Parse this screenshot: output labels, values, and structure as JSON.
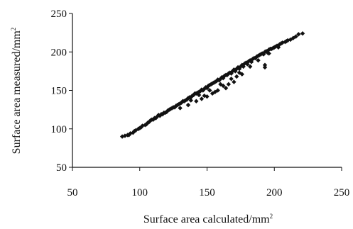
{
  "chart_data": {
    "type": "scatter",
    "title": "",
    "xlabel": "Surface area calculated/mm",
    "xlabel_sup": "2",
    "ylabel": "Surface area measured/mm",
    "ylabel_sup": "2",
    "xlim": [
      50,
      250
    ],
    "ylim": [
      50,
      250
    ],
    "xticks": [
      50,
      100,
      150,
      200,
      250
    ],
    "yticks": [
      50,
      100,
      150,
      200,
      250
    ],
    "grid": false,
    "legend": "none",
    "marker": "diamond",
    "marker_color": "#111111",
    "points": [
      [
        87,
        90
      ],
      [
        89,
        91
      ],
      [
        91,
        92
      ],
      [
        93,
        94
      ],
      [
        95,
        95
      ],
      [
        97,
        98
      ],
      [
        99,
        100
      ],
      [
        101,
        102
      ],
      [
        102,
        104
      ],
      [
        104,
        105
      ],
      [
        106,
        108
      ],
      [
        107,
        109
      ],
      [
        109,
        112
      ],
      [
        110,
        112
      ],
      [
        112,
        114
      ],
      [
        113,
        116
      ],
      [
        115,
        117
      ],
      [
        116,
        119
      ],
      [
        118,
        121
      ],
      [
        119,
        121
      ],
      [
        121,
        124
      ],
      [
        122,
        125
      ],
      [
        124,
        127
      ],
      [
        125,
        128
      ],
      [
        127,
        130
      ],
      [
        128,
        131
      ],
      [
        130,
        133
      ],
      [
        131,
        134
      ],
      [
        133,
        136
      ],
      [
        134,
        137
      ],
      [
        136,
        140
      ],
      [
        137,
        141
      ],
      [
        139,
        143
      ],
      [
        140,
        144
      ],
      [
        142,
        146
      ],
      [
        143,
        147
      ],
      [
        145,
        149
      ],
      [
        146,
        151
      ],
      [
        148,
        152
      ],
      [
        149,
        154
      ],
      [
        151,
        156
      ],
      [
        152,
        157
      ],
      [
        154,
        159
      ],
      [
        155,
        160
      ],
      [
        157,
        162
      ],
      [
        158,
        164
      ],
      [
        160,
        165
      ],
      [
        161,
        167
      ],
      [
        163,
        169
      ],
      [
        164,
        170
      ],
      [
        166,
        172
      ],
      [
        167,
        173
      ],
      [
        169,
        175
      ],
      [
        170,
        177
      ],
      [
        172,
        178
      ],
      [
        173,
        180
      ],
      [
        175,
        181
      ],
      [
        176,
        183
      ],
      [
        178,
        185
      ],
      [
        179,
        186
      ],
      [
        181,
        188
      ],
      [
        182,
        189
      ],
      [
        184,
        191
      ],
      [
        185,
        192
      ],
      [
        187,
        194
      ],
      [
        188,
        195
      ],
      [
        190,
        197
      ],
      [
        191,
        198
      ],
      [
        193,
        200
      ],
      [
        194,
        201
      ],
      [
        196,
        203
      ],
      [
        197,
        204
      ],
      [
        199,
        205
      ],
      [
        200,
        206
      ],
      [
        202,
        208
      ],
      [
        204,
        210
      ],
      [
        206,
        212
      ],
      [
        208,
        213
      ],
      [
        210,
        215
      ],
      [
        212,
        216
      ],
      [
        214,
        218
      ],
      [
        216,
        220
      ],
      [
        218,
        223
      ],
      [
        221,
        224
      ],
      [
        92,
        92
      ],
      [
        96,
        97
      ],
      [
        100,
        101
      ],
      [
        105,
        106
      ],
      [
        108,
        111
      ],
      [
        111,
        114
      ],
      [
        114,
        118
      ],
      [
        117,
        119
      ],
      [
        120,
        122
      ],
      [
        123,
        126
      ],
      [
        126,
        128
      ],
      [
        129,
        132
      ],
      [
        132,
        136
      ],
      [
        135,
        138
      ],
      [
        138,
        141
      ],
      [
        141,
        146
      ],
      [
        144,
        148
      ],
      [
        147,
        150
      ],
      [
        150,
        153
      ],
      [
        153,
        158
      ],
      [
        156,
        161
      ],
      [
        159,
        163
      ],
      [
        162,
        166
      ],
      [
        165,
        170
      ],
      [
        168,
        172
      ],
      [
        171,
        175
      ],
      [
        174,
        178
      ],
      [
        177,
        181
      ],
      [
        180,
        184
      ],
      [
        183,
        187
      ],
      [
        186,
        192
      ],
      [
        189,
        196
      ],
      [
        192,
        197
      ],
      [
        195,
        199
      ],
      [
        198,
        204
      ],
      [
        201,
        207
      ],
      [
        205,
        211
      ],
      [
        209,
        214
      ],
      [
        130,
        127
      ],
      [
        136,
        131
      ],
      [
        142,
        136
      ],
      [
        146,
        139
      ],
      [
        150,
        142
      ],
      [
        154,
        146
      ],
      [
        158,
        150
      ],
      [
        162,
        156
      ],
      [
        166,
        158
      ],
      [
        170,
        161
      ],
      [
        148,
        143
      ],
      [
        156,
        148
      ],
      [
        164,
        153
      ],
      [
        172,
        168
      ],
      [
        176,
        171
      ],
      [
        193,
        180
      ],
      [
        193,
        183
      ],
      [
        138,
        137
      ],
      [
        144,
        144
      ],
      [
        152,
        150
      ],
      [
        160,
        158
      ],
      [
        168,
        165
      ],
      [
        174,
        173
      ],
      [
        182,
        181
      ],
      [
        188,
        189
      ],
      [
        196,
        198
      ],
      [
        203,
        206
      ]
    ]
  }
}
